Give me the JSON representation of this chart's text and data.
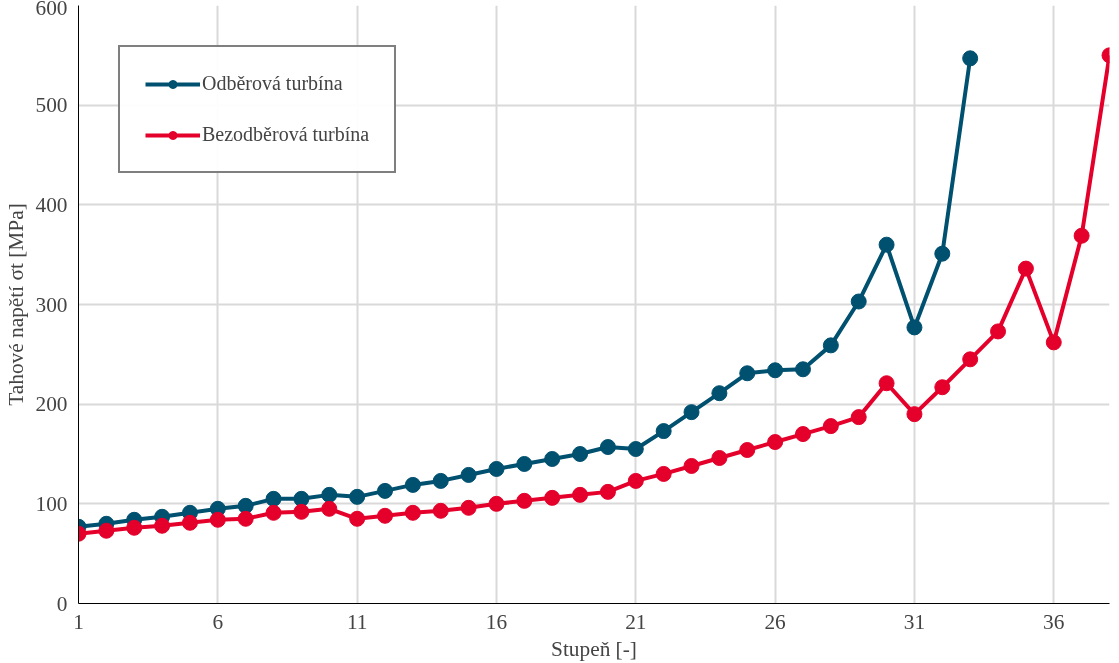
{
  "chart_data": {
    "type": "line",
    "xlabel": "Stupeň [-]",
    "ylabel": "Tahové napětí σt [MPa]",
    "x": [
      1,
      2,
      3,
      4,
      5,
      6,
      7,
      8,
      9,
      10,
      11,
      12,
      13,
      14,
      15,
      16,
      17,
      18,
      19,
      20,
      21,
      22,
      23,
      24,
      25,
      26,
      27,
      28,
      29,
      30,
      31,
      32,
      33,
      34,
      35,
      36,
      37,
      38
    ],
    "series": [
      {
        "name": "Odběrová turbína",
        "color": "#005070",
        "values": [
          77,
          80,
          84,
          87,
          91,
          95,
          98,
          105,
          105,
          109,
          107,
          113,
          119,
          123,
          129,
          135,
          140,
          145,
          150,
          157,
          155,
          173,
          192,
          211,
          231,
          234,
          235,
          259,
          303,
          360,
          277,
          351,
          547,
          null,
          null,
          null,
          null,
          null
        ]
      },
      {
        "name": "Bezodběrová turbína",
        "color": "#e4002b",
        "values": [
          70,
          73,
          76,
          78,
          81,
          84,
          85,
          91,
          92,
          95,
          85,
          88,
          91,
          93,
          96,
          100,
          103,
          106,
          109,
          112,
          123,
          130,
          138,
          146,
          154,
          162,
          170,
          178,
          187,
          221,
          190,
          217,
          245,
          273,
          336,
          262,
          369,
          550
        ]
      }
    ],
    "xlim": [
      1,
      38
    ],
    "xticks": [
      1,
      6,
      11,
      16,
      21,
      26,
      31,
      36
    ],
    "ylim": [
      0,
      600
    ],
    "yticks": [
      0,
      100,
      200,
      300,
      400,
      500,
      600
    ],
    "grid": true,
    "legend": "top left",
    "marker": "circle",
    "line_style": "solid"
  }
}
